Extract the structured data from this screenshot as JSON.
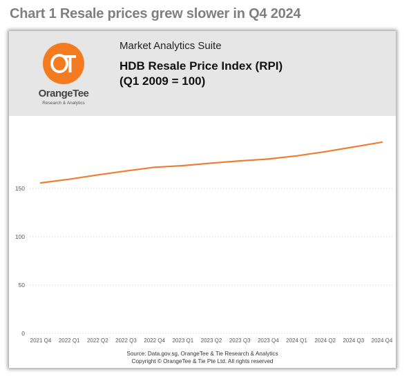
{
  "page": {
    "heading": "Chart 1 Resale prices grew slower in Q4 2024"
  },
  "banner": {
    "brand_name": "OrangeTee",
    "brand_tagline": "Research & Analytics",
    "logo_letters": "OT",
    "suite_label": "Market Analytics Suite",
    "title_line1": "HDB Resale Price Index (RPI)",
    "title_line2": "(Q1 2009 = 100)"
  },
  "footer": {
    "source": "Source: Data.gov.sg, OrangeTee & Tie Research & Analytics",
    "copyright": "Copyright © OrangeTee & Tie Pte Ltd. All rights reserved"
  },
  "colors": {
    "line": "#ed7d31",
    "logo": "#f47c20",
    "grid": "#d9d9d9",
    "axis_text": "#595959",
    "banner": "#e6e6e6"
  },
  "chart_data": {
    "type": "line",
    "categories": [
      "2021 Q4",
      "2022 Q1",
      "2022 Q2",
      "2022 Q3",
      "2022 Q4",
      "2023 Q1",
      "2023 Q2",
      "2023 Q3",
      "2023 Q4",
      "2024 Q1",
      "2024 Q2",
      "2024 Q3",
      "2024 Q4"
    ],
    "series": [
      {
        "values": [
          155.7,
          159.5,
          164.0,
          168.1,
          171.9,
          173.6,
          176.2,
          178.5,
          180.4,
          183.7,
          188.0,
          192.9,
          197.9
        ]
      }
    ],
    "yticks": [
      0,
      50,
      100,
      150
    ],
    "ylim": [
      0,
      210
    ],
    "grid": true,
    "grid_style": "dotted",
    "legend": "none"
  }
}
